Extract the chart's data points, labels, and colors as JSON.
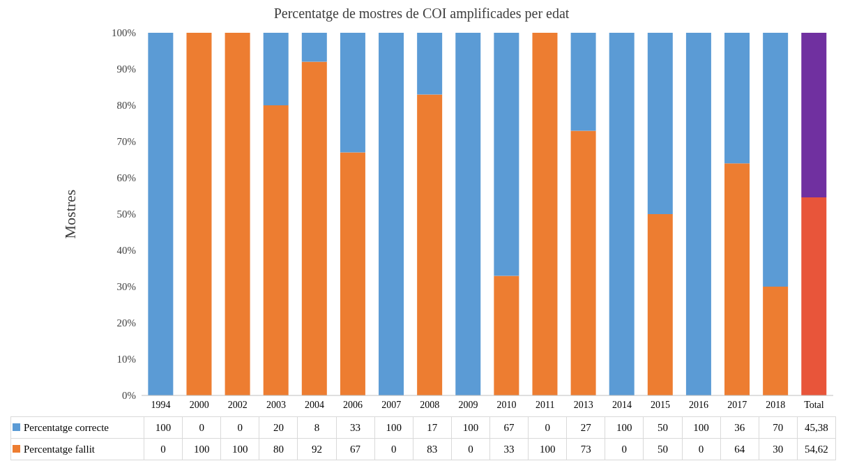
{
  "chart_data": {
    "type": "bar",
    "stacked": true,
    "legend": "bottom",
    "title": "Percentatge de mostres de COI amplificades per edat",
    "ylabel": "Mostres",
    "categories": [
      "1994",
      "2000",
      "2002",
      "2003",
      "2004",
      "2006",
      "2007",
      "2008",
      "2009",
      "2010",
      "2011",
      "2013",
      "2014",
      "2015",
      "2016",
      "2017",
      "2018",
      "Total"
    ],
    "ylim": [
      0,
      100
    ],
    "yticks": [
      {
        "value": 0,
        "label": "0%"
      },
      {
        "value": 10,
        "label": "10%"
      },
      {
        "value": 20,
        "label": "20%"
      },
      {
        "value": 30,
        "label": "30%"
      },
      {
        "value": 40,
        "label": "40%"
      },
      {
        "value": 50,
        "label": "50%"
      },
      {
        "value": 60,
        "label": "60%"
      },
      {
        "value": 70,
        "label": "70%"
      },
      {
        "value": 80,
        "label": "80%"
      },
      {
        "value": 90,
        "label": "90%"
      },
      {
        "value": 100,
        "label": "100%"
      }
    ],
    "series": [
      {
        "name": "Percentatge fallit",
        "color": "#ed7d31",
        "colors": [
          "#ed7d31",
          "#ed7d31",
          "#ed7d31",
          "#ed7d31",
          "#ed7d31",
          "#ed7d31",
          "#ed7d31",
          "#ed7d31",
          "#ed7d31",
          "#ed7d31",
          "#ed7d31",
          "#ed7d31",
          "#ed7d31",
          "#ed7d31",
          "#ed7d31",
          "#ed7d31",
          "#ed7d31",
          "#e8553a"
        ],
        "values": [
          0,
          100,
          100,
          80,
          92,
          67,
          0,
          83,
          0,
          33,
          100,
          73,
          0,
          50,
          0,
          64,
          30,
          54.62
        ],
        "value_labels": [
          "0",
          "100",
          "100",
          "80",
          "92",
          "67",
          "0",
          "83",
          "0",
          "33",
          "100",
          "73",
          "0",
          "50",
          "0",
          "64",
          "30",
          "54,62"
        ]
      },
      {
        "name": "Percentatge correcte",
        "color": "#5b9bd5",
        "colors": [
          "#5b9bd5",
          "#5b9bd5",
          "#5b9bd5",
          "#5b9bd5",
          "#5b9bd5",
          "#5b9bd5",
          "#5b9bd5",
          "#5b9bd5",
          "#5b9bd5",
          "#5b9bd5",
          "#5b9bd5",
          "#5b9bd5",
          "#5b9bd5",
          "#5b9bd5",
          "#5b9bd5",
          "#5b9bd5",
          "#5b9bd5",
          "#7030a0"
        ],
        "values": [
          100,
          0,
          0,
          20,
          8,
          33,
          100,
          17,
          100,
          67,
          0,
          27,
          100,
          50,
          100,
          36,
          70,
          45.38
        ],
        "value_labels": [
          "100",
          "0",
          "0",
          "20",
          "8",
          "33",
          "100",
          "17",
          "100",
          "67",
          "0",
          "27",
          "100",
          "50",
          "100",
          "36",
          "70",
          "45,38"
        ]
      }
    ]
  }
}
